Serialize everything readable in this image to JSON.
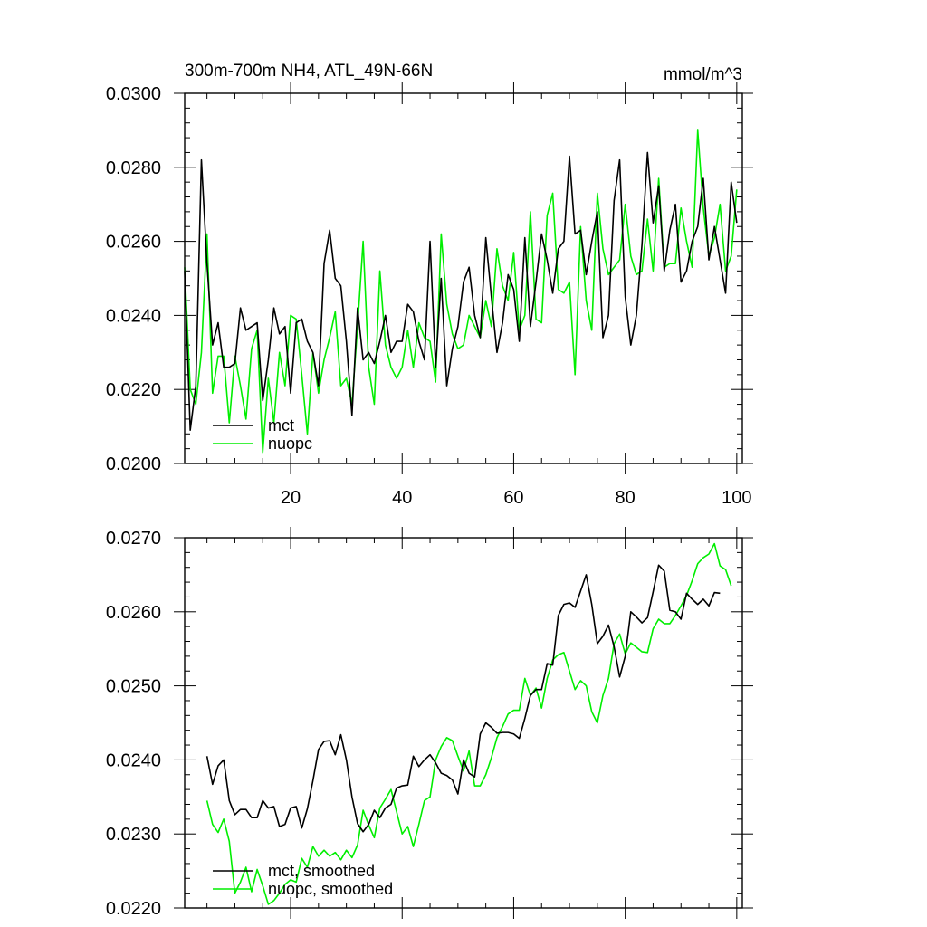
{
  "chart_data": [
    {
      "type": "line",
      "title": "300m-700m NH4, ATL_49N-66N",
      "units": "mmol/m^3",
      "xlim": [
        1,
        101
      ],
      "ylim": [
        0.02,
        0.03
      ],
      "x_ticks": [
        20,
        40,
        60,
        80,
        100
      ],
      "y_ticks": [
        "0.0200",
        "0.0220",
        "0.0240",
        "0.0260",
        "0.0280",
        "0.0300"
      ],
      "legend_position": "bottom-left",
      "colors": {
        "mct": "#000000",
        "nuopc": "#00ee00"
      },
      "series": [
        {
          "name": "mct",
          "x_start": 1,
          "values": [
            0.0252,
            0.0209,
            0.0221,
            0.0282,
            0.0254,
            0.0232,
            0.0238,
            0.0226,
            0.0226,
            0.0227,
            0.0242,
            0.0236,
            0.0237,
            0.0238,
            0.0217,
            0.0228,
            0.0242,
            0.0235,
            0.0237,
            0.0219,
            0.0238,
            0.0239,
            0.0233,
            0.023,
            0.0221,
            0.0254,
            0.0263,
            0.025,
            0.0248,
            0.0233,
            0.0213,
            0.0242,
            0.0228,
            0.023,
            0.0227,
            0.0233,
            0.024,
            0.023,
            0.0233,
            0.0233,
            0.0243,
            0.0241,
            0.0233,
            0.0228,
            0.026,
            0.0226,
            0.025,
            0.0221,
            0.0231,
            0.0237,
            0.0249,
            0.0253,
            0.024,
            0.0234,
            0.0261,
            0.0245,
            0.023,
            0.0238,
            0.0251,
            0.0247,
            0.0233,
            0.0261,
            0.0237,
            0.0249,
            0.0262,
            0.0255,
            0.0246,
            0.0258,
            0.026,
            0.0283,
            0.0262,
            0.0263,
            0.0251,
            0.026,
            0.0268,
            0.0234,
            0.024,
            0.0271,
            0.0282,
            0.0245,
            0.0232,
            0.024,
            0.0259,
            0.0284,
            0.0265,
            0.0275,
            0.0252,
            0.0263,
            0.027,
            0.0249,
            0.0252,
            0.026,
            0.0264,
            0.0277,
            0.0255,
            0.0264,
            0.0255,
            0.0246,
            0.0276,
            0.0265
          ]
        },
        {
          "name": "nuopc",
          "x_start": 1,
          "values": [
            0.0253,
            0.022,
            0.0216,
            0.023,
            0.0262,
            0.0219,
            0.0229,
            0.0229,
            0.0211,
            0.0229,
            0.0221,
            0.0212,
            0.0231,
            0.0236,
            0.0203,
            0.0223,
            0.0211,
            0.023,
            0.0221,
            0.024,
            0.0239,
            0.0224,
            0.0208,
            0.023,
            0.0219,
            0.0228,
            0.0234,
            0.0241,
            0.0221,
            0.0223,
            0.0216,
            0.0237,
            0.026,
            0.0226,
            0.0216,
            0.0252,
            0.0232,
            0.0226,
            0.0223,
            0.0226,
            0.0236,
            0.0226,
            0.0238,
            0.0234,
            0.0233,
            0.0222,
            0.0262,
            0.0243,
            0.0235,
            0.0231,
            0.0232,
            0.024,
            0.0237,
            0.0234,
            0.0244,
            0.0237,
            0.0258,
            0.0248,
            0.0244,
            0.0257,
            0.0236,
            0.024,
            0.0268,
            0.0239,
            0.0238,
            0.0267,
            0.0273,
            0.0247,
            0.0246,
            0.0249,
            0.0224,
            0.0264,
            0.0244,
            0.0236,
            0.0273,
            0.0258,
            0.0251,
            0.0253,
            0.0255,
            0.027,
            0.0256,
            0.0251,
            0.0252,
            0.0266,
            0.0252,
            0.0277,
            0.0253,
            0.0254,
            0.0254,
            0.0269,
            0.026,
            0.0253,
            0.029,
            0.0269,
            0.0256,
            0.0261,
            0.027,
            0.0252,
            0.0256,
            0.0274
          ]
        }
      ]
    },
    {
      "type": "line",
      "xlim": [
        1,
        101
      ],
      "ylim": [
        0.022,
        0.027
      ],
      "x_ticks": [
        20,
        40,
        60,
        80,
        100
      ],
      "y_ticks": [
        "0.0220",
        "0.0230",
        "0.0240",
        "0.0250",
        "0.0260",
        "0.0270"
      ],
      "legend_position": "bottom-left",
      "colors": {
        "mct": "#000000",
        "nuopc": "#00ee00"
      },
      "series": [
        {
          "name": "mct, smoothed",
          "x_start": 5,
          "values": [
            0.02405,
            0.02367,
            0.02392,
            0.024,
            0.02345,
            0.02326,
            0.02333,
            0.02333,
            0.02322,
            0.02322,
            0.02345,
            0.02335,
            0.02337,
            0.0231,
            0.02313,
            0.02335,
            0.02337,
            0.02308,
            0.02334,
            0.02372,
            0.02414,
            0.02425,
            0.02426,
            0.02407,
            0.02434,
            0.024,
            0.0235,
            0.02314,
            0.02303,
            0.02313,
            0.02332,
            0.02322,
            0.02335,
            0.0234,
            0.02362,
            0.02365,
            0.02366,
            0.02405,
            0.02391,
            0.024,
            0.02407,
            0.02396,
            0.02382,
            0.02379,
            0.02373,
            0.02354,
            0.024,
            0.02382,
            0.02377,
            0.02435,
            0.0245,
            0.02444,
            0.02436,
            0.02437,
            0.02437,
            0.02435,
            0.02429,
            0.02456,
            0.02487,
            0.02495,
            0.02495,
            0.0253,
            0.02528,
            0.02595,
            0.0261,
            0.02612,
            0.02606,
            0.02628,
            0.0265,
            0.0261,
            0.02557,
            0.02567,
            0.02582,
            0.02553,
            0.02512,
            0.0254,
            0.026,
            0.02593,
            0.02585,
            0.02592,
            0.02627,
            0.02663,
            0.02655,
            0.02602,
            0.026,
            0.0259,
            0.02625,
            0.02617,
            0.0261,
            0.02617,
            0.02608,
            0.02626,
            0.02625
          ]
        },
        {
          "name": "nuopc, smoothed",
          "x_start": 5,
          "values": [
            0.02345,
            0.02313,
            0.02302,
            0.0232,
            0.0229,
            0.0222,
            0.02235,
            0.02255,
            0.02222,
            0.02252,
            0.0223,
            0.02205,
            0.0221,
            0.0222,
            0.02232,
            0.02238,
            0.02235,
            0.02267,
            0.02255,
            0.02283,
            0.0227,
            0.02278,
            0.0227,
            0.02275,
            0.02265,
            0.02278,
            0.02268,
            0.02285,
            0.02332,
            0.02312,
            0.02295,
            0.02335,
            0.02347,
            0.0236,
            0.0233,
            0.023,
            0.0231,
            0.02283,
            0.02313,
            0.02345,
            0.0235,
            0.024,
            0.02418,
            0.0243,
            0.02426,
            0.02405,
            0.02385,
            0.02412,
            0.02365,
            0.02365,
            0.0238,
            0.02403,
            0.0243,
            0.02445,
            0.02462,
            0.02467,
            0.02467,
            0.0251,
            0.02487,
            0.02497,
            0.0247,
            0.0251,
            0.02535,
            0.02542,
            0.02545,
            0.0252,
            0.02495,
            0.02507,
            0.025,
            0.02465,
            0.0245,
            0.02487,
            0.0251,
            0.02557,
            0.0257,
            0.02543,
            0.02558,
            0.02552,
            0.02546,
            0.02545,
            0.02577,
            0.0259,
            0.02584,
            0.02584,
            0.02595,
            0.02608,
            0.02622,
            0.02642,
            0.02665,
            0.02673,
            0.02678,
            0.02692,
            0.02662,
            0.02657,
            0.02635
          ]
        }
      ]
    }
  ]
}
